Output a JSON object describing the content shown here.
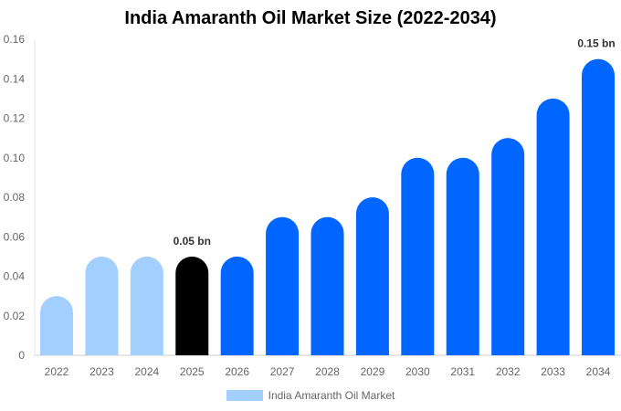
{
  "chart_data": {
    "type": "bar",
    "title": "India Amaranth Oil Market Size (2022-2034)",
    "categories": [
      "2022",
      "2023",
      "2024",
      "2025",
      "2026",
      "2027",
      "2028",
      "2029",
      "2030",
      "2031",
      "2032",
      "2033",
      "2034"
    ],
    "series": [
      {
        "name": "India Amaranth Oil Market",
        "values": [
          0.03,
          0.05,
          0.05,
          0.05,
          0.05,
          0.07,
          0.07,
          0.08,
          0.1,
          0.1,
          0.11,
          0.13,
          0.15
        ]
      }
    ],
    "bar_colors": [
      "#a3cfff",
      "#a3cfff",
      "#a3cfff",
      "#000000",
      "#0066ff",
      "#0066ff",
      "#0066ff",
      "#0066ff",
      "#0066ff",
      "#0066ff",
      "#0066ff",
      "#0066ff",
      "#0066ff"
    ],
    "data_labels": {
      "2025": "0.05 bn",
      "2034": "0.15 bn"
    },
    "yticks": [
      "0",
      "0.02",
      "0.04",
      "0.06",
      "0.08",
      "0.10",
      "0.12",
      "0.14",
      "0.16"
    ],
    "ylim": [
      0,
      0.16
    ],
    "xlabel": "",
    "ylabel": "",
    "grid": false,
    "legend_position": "bottom",
    "legend_color": "#a3cfff"
  }
}
